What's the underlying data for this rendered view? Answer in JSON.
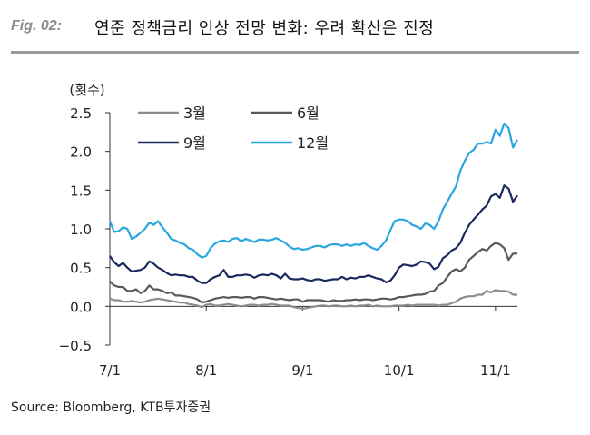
{
  "header": {
    "fig_label": "Fig. 02:",
    "title": "연준 정책금리 인상 전망 변화: 우려 확산은 진정"
  },
  "source": "Source: Bloomberg, KTB투자증권",
  "chart_data": {
    "type": "line",
    "ylabel": "(횟수)",
    "xlabel": "",
    "title": "",
    "ylim": [
      -0.5,
      2.5
    ],
    "yticks": [
      -0.5,
      0.0,
      0.5,
      1.0,
      1.5,
      2.0,
      2.5
    ],
    "ytick_labels": [
      "−0.5",
      "0.0",
      "0.5",
      "1.0",
      "1.5",
      "2.0",
      "2.5"
    ],
    "x_ticks": [
      {
        "label": "7/1",
        "idx": 0
      },
      {
        "label": "8/1",
        "idx": 22
      },
      {
        "label": "9/1",
        "idx": 44
      },
      {
        "label": "10/1",
        "idx": 66
      },
      {
        "label": "11/1",
        "idx": 88
      }
    ],
    "x_count": 94,
    "legend_placement": "top-left",
    "grid": false,
    "series": [
      {
        "name": "3월",
        "color": "#8c8c8c",
        "values": [
          0.1,
          0.08,
          0.08,
          0.06,
          0.06,
          0.07,
          0.06,
          0.05,
          0.06,
          0.08,
          0.09,
          0.1,
          0.09,
          0.08,
          0.07,
          0.06,
          0.05,
          0.05,
          0.03,
          0.02,
          0.01,
          -0.01,
          0.02,
          0.03,
          0.01,
          0.01,
          0.02,
          0.03,
          0.02,
          0.01,
          0.0,
          0.01,
          0.02,
          0.02,
          0.01,
          0.02,
          0.02,
          0.03,
          0.02,
          0.01,
          0.01,
          0.01,
          -0.01,
          -0.02,
          -0.03,
          -0.02,
          -0.01,
          0.0,
          0.01,
          0.01,
          0.0,
          0.01,
          0.01,
          0.0,
          0.0,
          0.01,
          0.0,
          0.01,
          0.01,
          0.02,
          0.0,
          0.01,
          0.0,
          0.0,
          0.0,
          0.01,
          0.01,
          0.01,
          0.02,
          0.01,
          0.02,
          0.02,
          0.02,
          0.02,
          0.02,
          0.01,
          0.02,
          0.02,
          0.04,
          0.06,
          0.1,
          0.12,
          0.13,
          0.13,
          0.15,
          0.15,
          0.2,
          0.18,
          0.21,
          0.2,
          0.2,
          0.19,
          0.15,
          0.15
        ]
      },
      {
        "name": "6월",
        "color": "#595959",
        "values": [
          0.32,
          0.27,
          0.25,
          0.25,
          0.2,
          0.2,
          0.22,
          0.17,
          0.2,
          0.27,
          0.22,
          0.22,
          0.2,
          0.17,
          0.18,
          0.14,
          0.14,
          0.13,
          0.12,
          0.11,
          0.09,
          0.05,
          0.06,
          0.08,
          0.1,
          0.11,
          0.12,
          0.11,
          0.12,
          0.12,
          0.11,
          0.12,
          0.12,
          0.1,
          0.12,
          0.12,
          0.11,
          0.1,
          0.09,
          0.1,
          0.09,
          0.08,
          0.09,
          0.09,
          0.06,
          0.08,
          0.08,
          0.08,
          0.08,
          0.07,
          0.06,
          0.08,
          0.07,
          0.07,
          0.08,
          0.08,
          0.09,
          0.08,
          0.09,
          0.09,
          0.08,
          0.09,
          0.1,
          0.1,
          0.09,
          0.1,
          0.12,
          0.12,
          0.13,
          0.14,
          0.15,
          0.15,
          0.16,
          0.19,
          0.2,
          0.27,
          0.3,
          0.38,
          0.45,
          0.48,
          0.45,
          0.5,
          0.6,
          0.65,
          0.7,
          0.74,
          0.72,
          0.78,
          0.82,
          0.8,
          0.75,
          0.6,
          0.68,
          0.68
        ]
      },
      {
        "name": "9월",
        "color": "#1a2a5c",
        "values": [
          0.65,
          0.57,
          0.52,
          0.56,
          0.5,
          0.45,
          0.46,
          0.47,
          0.5,
          0.58,
          0.55,
          0.5,
          0.47,
          0.43,
          0.4,
          0.41,
          0.4,
          0.4,
          0.38,
          0.38,
          0.33,
          0.3,
          0.3,
          0.35,
          0.38,
          0.4,
          0.47,
          0.38,
          0.38,
          0.4,
          0.4,
          0.41,
          0.4,
          0.37,
          0.4,
          0.41,
          0.4,
          0.42,
          0.4,
          0.36,
          0.42,
          0.36,
          0.35,
          0.35,
          0.36,
          0.34,
          0.33,
          0.35,
          0.35,
          0.33,
          0.34,
          0.35,
          0.35,
          0.38,
          0.35,
          0.37,
          0.36,
          0.38,
          0.38,
          0.4,
          0.38,
          0.36,
          0.35,
          0.31,
          0.33,
          0.4,
          0.5,
          0.54,
          0.53,
          0.52,
          0.54,
          0.58,
          0.57,
          0.55,
          0.48,
          0.51,
          0.62,
          0.66,
          0.72,
          0.75,
          0.82,
          0.95,
          1.05,
          1.12,
          1.18,
          1.25,
          1.3,
          1.42,
          1.45,
          1.4,
          1.56,
          1.52,
          1.35,
          1.43
        ]
      },
      {
        "name": "12월",
        "color": "#29a6e0",
        "values": [
          1.1,
          0.96,
          0.97,
          1.02,
          1.0,
          0.87,
          0.9,
          0.95,
          1.0,
          1.08,
          1.05,
          1.1,
          1.02,
          0.95,
          0.87,
          0.85,
          0.82,
          0.8,
          0.75,
          0.73,
          0.67,
          0.63,
          0.65,
          0.75,
          0.81,
          0.84,
          0.85,
          0.83,
          0.87,
          0.88,
          0.84,
          0.87,
          0.85,
          0.83,
          0.86,
          0.86,
          0.85,
          0.86,
          0.88,
          0.85,
          0.82,
          0.77,
          0.74,
          0.75,
          0.73,
          0.74,
          0.76,
          0.78,
          0.78,
          0.76,
          0.79,
          0.8,
          0.8,
          0.78,
          0.8,
          0.78,
          0.8,
          0.79,
          0.82,
          0.78,
          0.75,
          0.73,
          0.78,
          0.85,
          0.98,
          1.1,
          1.12,
          1.12,
          1.1,
          1.05,
          1.03,
          1.0,
          1.07,
          1.05,
          1.0,
          1.1,
          1.25,
          1.35,
          1.45,
          1.55,
          1.75,
          1.88,
          1.98,
          2.02,
          2.1,
          2.1,
          2.12,
          2.1,
          2.28,
          2.2,
          2.36,
          2.3,
          2.05,
          2.15
        ]
      }
    ]
  }
}
